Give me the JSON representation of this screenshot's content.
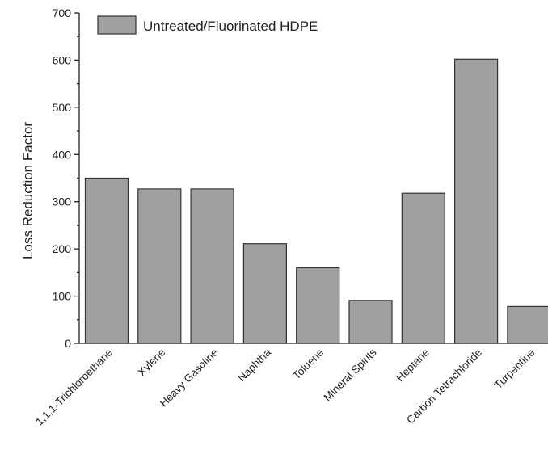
{
  "chart_data": {
    "type": "bar",
    "categories": [
      "1,1,1-Trichloroethane",
      "Xylene",
      "Heavy Gasoline",
      "Naphtha",
      "Toluene",
      "Mineral Spirits",
      "Heptane",
      "Carbon Tetrachloride",
      "Turpentine"
    ],
    "series": [
      {
        "name": "Untreated/Fluorinated HDPE",
        "values": [
          350,
          327,
          327,
          211,
          160,
          91,
          318,
          602,
          78
        ],
        "color": "#a0a0a0"
      }
    ],
    "title": "",
    "xlabel": "",
    "ylabel": "Loss Reduction Factor",
    "ylim": [
      0,
      700
    ],
    "yticks": [
      0,
      100,
      200,
      300,
      400,
      500,
      600,
      700
    ],
    "grid": false,
    "legend_position": "top-left",
    "tick_label_rotation": -45
  }
}
